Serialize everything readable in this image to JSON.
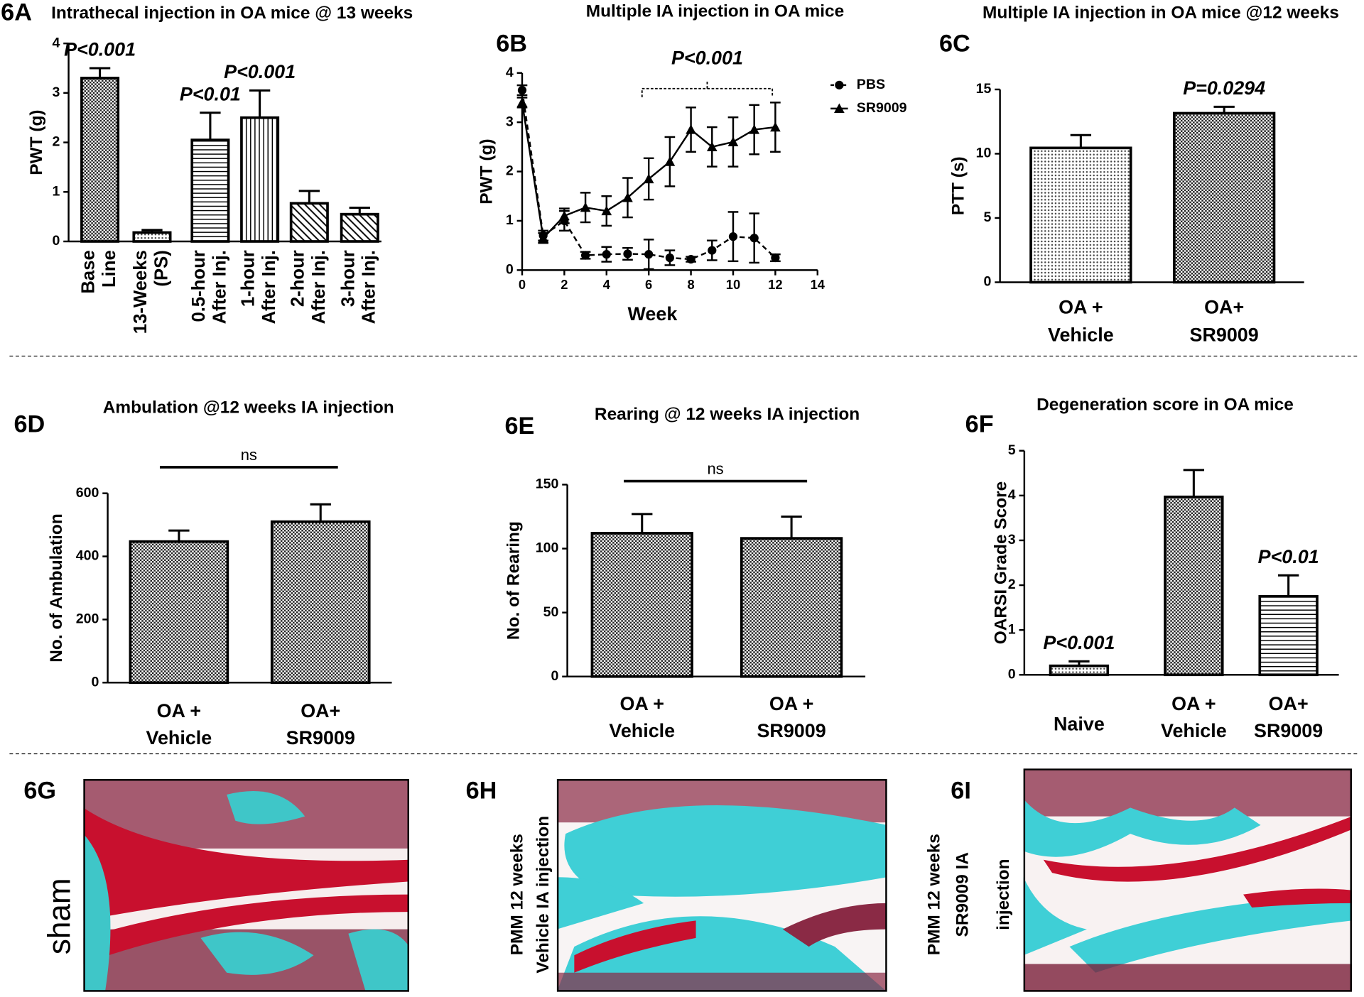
{
  "chart_data": [
    {
      "type": "bar",
      "panel": "6A",
      "title": "Intrathecal injection in OA mice @ 13 weeks",
      "ylabel": "PWT (g)",
      "categories": [
        [
          "Base",
          "Line"
        ],
        [
          "13-Weeks",
          "(PS)"
        ],
        [
          "0.5-hour",
          "After Inj."
        ],
        [
          "1-hour",
          "After Inj."
        ],
        [
          "2-hour",
          "After Inj."
        ],
        [
          "3-hour",
          "After Inj."
        ]
      ],
      "values": [
        3.3,
        0.18,
        2.05,
        2.5,
        0.77,
        0.55
      ],
      "errors": [
        0.2,
        0.05,
        0.55,
        0.55,
        0.25,
        0.13
      ],
      "bar_labels": [
        "P<0.001",
        null,
        "P<0.01",
        "P<0.001",
        null,
        null
      ],
      "patterns": [
        "checker",
        "dots",
        "hlines",
        "vlines",
        "diagonal",
        "diagonal"
      ],
      "rotate_labels": true,
      "color": "#000000",
      "ylim": [
        0,
        4
      ],
      "yticks": [
        0,
        1,
        2,
        3,
        4
      ]
    },
    {
      "type": "line",
      "panel": "6B",
      "title": "Multiple IA injection in OA mice",
      "xlabel": "Week",
      "ylabel": "PWT (g)",
      "x": [
        0,
        1,
        2,
        3,
        4,
        5,
        6,
        7,
        8,
        9,
        10,
        11,
        12
      ],
      "series": [
        {
          "name": "PBS",
          "color": "#000000",
          "marker": "circle",
          "dashed": true,
          "values": [
            3.65,
            0.7,
            1.0,
            0.3,
            0.32,
            0.33,
            0.32,
            0.25,
            0.22,
            0.4,
            0.68,
            0.65,
            0.25
          ],
          "errors": [
            0.1,
            0.1,
            0.2,
            0.07,
            0.15,
            0.12,
            0.3,
            0.15,
            0.05,
            0.2,
            0.5,
            0.5,
            0.07
          ]
        },
        {
          "name": "SR9009",
          "color": "#000000",
          "marker": "triangle",
          "dashed": false,
          "values": [
            3.4,
            0.65,
            1.1,
            1.27,
            1.2,
            1.47,
            1.85,
            2.2,
            2.85,
            2.5,
            2.6,
            2.85,
            2.9
          ],
          "errors": [
            0.1,
            0.1,
            0.15,
            0.3,
            0.3,
            0.4,
            0.42,
            0.5,
            0.45,
            0.4,
            0.5,
            0.5,
            0.5
          ]
        }
      ],
      "bracket_label": "P<0.001",
      "legend": "upper right",
      "xlim": [
        0,
        14
      ],
      "xticks": [
        0,
        2,
        4,
        6,
        8,
        10,
        12,
        14
      ],
      "ylim": [
        0,
        4
      ],
      "yticks": [
        0,
        1,
        2,
        3,
        4
      ]
    },
    {
      "type": "bar",
      "panel": "6C",
      "title": "Multiple IA injection in OA mice @12 weeks",
      "ylabel": "PTT (s)",
      "categories": [
        [
          "OA +",
          "Vehicle"
        ],
        [
          "OA+",
          "SR9009"
        ]
      ],
      "values": [
        10.45,
        13.15
      ],
      "errors": [
        1.0,
        0.5
      ],
      "bar_labels": [
        null,
        "P=0.0294"
      ],
      "patterns": [
        "dots",
        "checker"
      ],
      "color": "#000000",
      "ylim": [
        0,
        15
      ],
      "yticks": [
        0,
        5,
        10,
        15
      ]
    },
    {
      "type": "bar",
      "panel": "6D",
      "title": "Ambulation @12 weeks IA  injection",
      "ylabel": "No. of Ambulation",
      "categories": [
        [
          "OA +",
          "Vehicle"
        ],
        [
          "OA+",
          "SR9009"
        ]
      ],
      "values": [
        447,
        510
      ],
      "errors": [
        35,
        55
      ],
      "significance": "ns",
      "patterns": [
        "checker",
        "checker"
      ],
      "color": "#000000",
      "ylim": [
        0,
        600
      ],
      "yticks": [
        0,
        200,
        400,
        600
      ]
    },
    {
      "type": "bar",
      "panel": "6E",
      "title": "Rearing @ 12 weeks IA injection",
      "ylabel": "No. of Rearing",
      "categories": [
        [
          "OA +",
          "Vehicle"
        ],
        [
          "OA +",
          "SR9009"
        ]
      ],
      "values": [
        112,
        108
      ],
      "errors": [
        15,
        17
      ],
      "significance": "ns",
      "patterns": [
        "checker",
        "checker"
      ],
      "color": "#000000",
      "ylim": [
        0,
        150
      ],
      "yticks": [
        0,
        50,
        100,
        150
      ]
    },
    {
      "type": "bar",
      "panel": "6F",
      "title": "Degeneration score in OA mice",
      "ylabel": "OARSI Grade Score",
      "categories": [
        [
          "Naive"
        ],
        [
          "OA +",
          "Vehicle"
        ],
        [
          "OA+",
          "SR9009"
        ]
      ],
      "values": [
        0.2,
        3.97,
        1.75
      ],
      "errors": [
        0.1,
        0.6,
        0.47
      ],
      "bar_labels": [
        "P<0.001",
        null,
        "P<0.01"
      ],
      "patterns": [
        "dots",
        "checker",
        "hlines"
      ],
      "color": "#000000",
      "ylim": [
        0,
        5
      ],
      "yticks": [
        0,
        1,
        2,
        3,
        4,
        5
      ]
    }
  ],
  "image_panels": [
    {
      "panel": "6G",
      "caption": [
        "sham"
      ]
    },
    {
      "panel": "6H",
      "caption": [
        "PMM 12 weeks",
        "Vehicle IA injection"
      ]
    },
    {
      "panel": "6I",
      "caption": [
        "PMM 12 weeks",
        "SR9009 IA",
        "injection"
      ]
    }
  ]
}
